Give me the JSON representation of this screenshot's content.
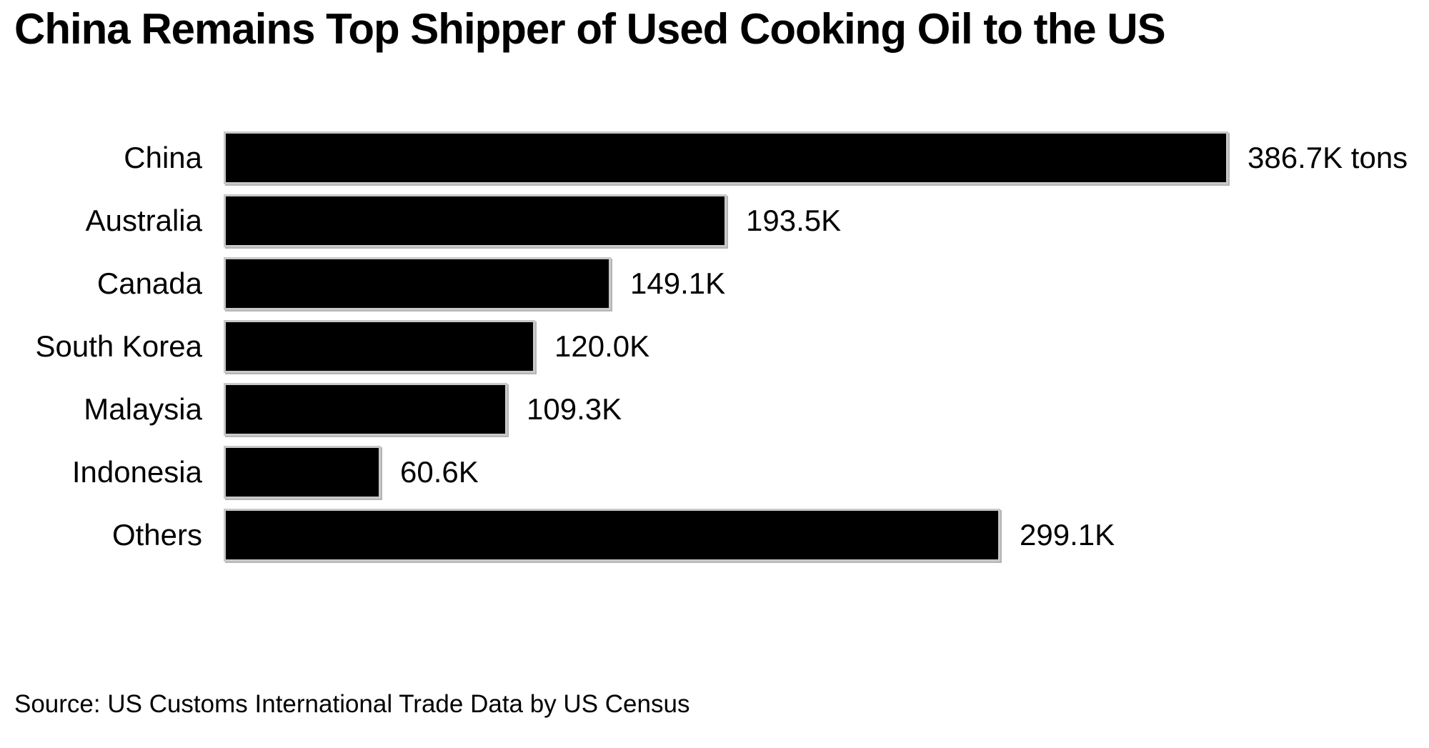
{
  "header": {
    "title": "China Remains Top Shipper of Used Cooking Oil to the US"
  },
  "chart_data": {
    "type": "bar",
    "orientation": "horizontal",
    "title": "China Remains Top Shipper of Used Cooking Oil to the US",
    "unit": "K tons",
    "categories": [
      "China",
      "Australia",
      "Canada",
      "South Korea",
      "Malaysia",
      "Indonesia",
      "Others"
    ],
    "values": [
      386.7,
      193.5,
      149.1,
      120.0,
      109.3,
      60.6,
      299.1
    ],
    "value_labels": [
      "386.7K tons",
      "193.5K",
      "149.1K",
      "120.0K",
      "109.3K",
      "60.6K",
      "299.1K"
    ],
    "xlabel": "",
    "ylabel": "",
    "xlim": [
      0,
      386.7
    ],
    "grid": false,
    "legend": false,
    "bar_color": "#000000",
    "bar_border_color": "#c9c9c9",
    "text_color": "#000000",
    "background_color": "#ffffff"
  },
  "footer": {
    "source": "Source: US Customs International Trade Data by US Census"
  }
}
